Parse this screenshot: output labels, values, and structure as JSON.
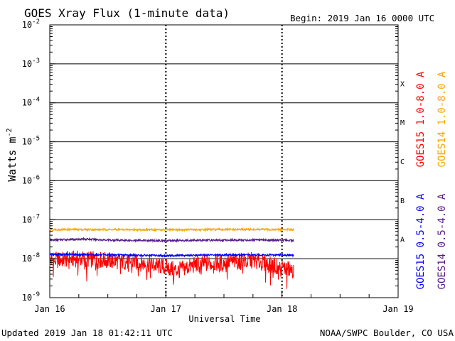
{
  "chart_data": {
    "type": "line",
    "title": "GOES Xray Flux (1-minute data)",
    "begin_label": "Begin:  2019 Jan 16 0000 UTC",
    "ylabel": "Watts m",
    "ylabel_sup": "-2",
    "xlabel": "Universal Time",
    "y_scale": "log",
    "ylim": [
      1e-09,
      0.01
    ],
    "xlim": [
      0,
      3
    ],
    "y_ticks": [
      {
        "base": "10",
        "exp": "-2",
        "value": -2
      },
      {
        "base": "10",
        "exp": "-3",
        "value": -3
      },
      {
        "base": "10",
        "exp": "-4",
        "value": -4
      },
      {
        "base": "10",
        "exp": "-5",
        "value": -5
      },
      {
        "base": "10",
        "exp": "-6",
        "value": -6
      },
      {
        "base": "10",
        "exp": "-7",
        "value": -7
      },
      {
        "base": "10",
        "exp": "-8",
        "value": -8
      },
      {
        "base": "10",
        "exp": "-9",
        "value": -9
      }
    ],
    "x_ticks": [
      {
        "label": "Jan 16",
        "value": 0
      },
      {
        "label": "Jan 17",
        "value": 1
      },
      {
        "label": "Jan 18",
        "value": 2
      },
      {
        "label": "Jan 19",
        "value": 3
      }
    ],
    "flare_classes": [
      {
        "label": "X",
        "log_center": -3.5
      },
      {
        "label": "M",
        "log_center": -4.5
      },
      {
        "label": "C",
        "log_center": -5.5
      },
      {
        "label": "B",
        "log_center": -6.5
      },
      {
        "label": "A",
        "log_center": -7.5
      }
    ],
    "grid": true,
    "series": [
      {
        "name": "GOES15 1.0-8.0 A",
        "color": "#ff0000",
        "x": [
          0.0,
          0.25,
          0.5,
          0.75,
          1.0,
          1.1,
          1.25,
          1.5,
          1.75,
          2.0,
          2.1
        ],
        "y": [
          9e-09,
          1e-08,
          9e-09,
          8e-09,
          6e-09,
          5e-09,
          7e-09,
          8e-09,
          9e-09,
          6e-09,
          5e-09
        ]
      },
      {
        "name": "GOES14 1.0-8.0 A",
        "color": "#ffa500",
        "x": [
          0.0,
          0.5,
          1.0,
          1.5,
          2.0,
          2.1
        ],
        "y": [
          5.6e-08,
          5.6e-08,
          5.5e-08,
          5.6e-08,
          5.6e-08,
          5.6e-08
        ]
      },
      {
        "name": "GOES15 0.5-4.0 A",
        "color": "#0000ff",
        "x": [
          0.0,
          0.5,
          1.0,
          1.5,
          2.0,
          2.1
        ],
        "y": [
          1.3e-08,
          1.25e-08,
          1.2e-08,
          1.25e-08,
          1.25e-08,
          1.2e-08
        ]
      },
      {
        "name": "GOES14 0.5-4.0 A",
        "color": "#551a8b",
        "x": [
          0.0,
          0.3,
          0.5,
          1.0,
          1.5,
          2.0,
          2.1
        ],
        "y": [
          3e-08,
          3.2e-08,
          3e-08,
          2.9e-08,
          3e-08,
          3e-08,
          2.9e-08
        ]
      }
    ]
  },
  "footer": {
    "updated": "Updated 2019 Jan 18 01:42:11 UTC",
    "credit": "NOAA/SWPC Boulder, CO USA"
  },
  "colors": {
    "goes15_long": "#ff0000",
    "goes14_long": "#ffa500",
    "goes15_short": "#0000ff",
    "goes14_short": "#551a8b"
  }
}
